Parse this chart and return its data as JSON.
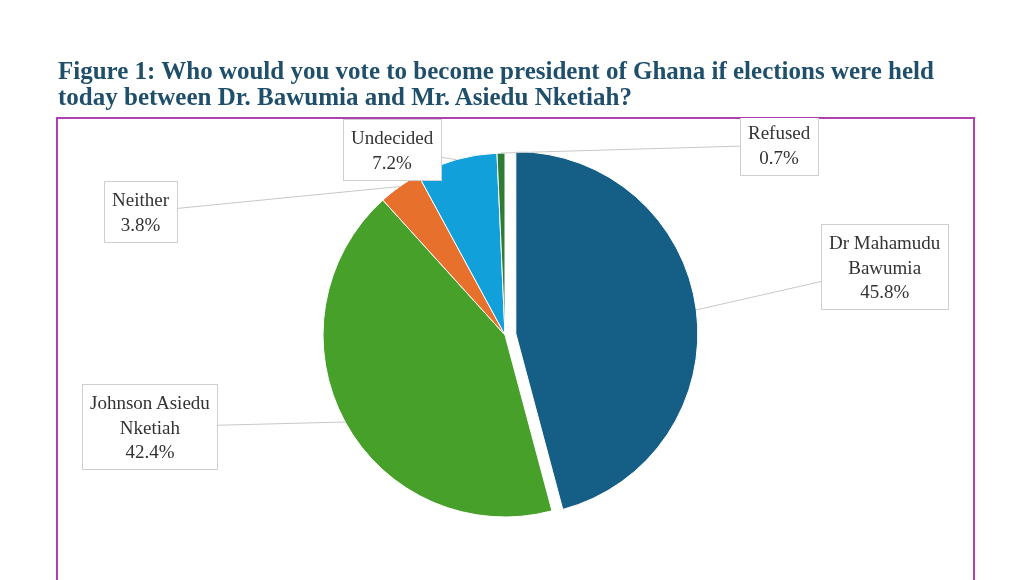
{
  "chart_data": {
    "type": "pie",
    "title": "Figure 1: Who would you vote to become president of Ghana if elections were held today between Dr. Bawumia and Mr. Asiedu Nketiah?",
    "categories": [
      "Dr Mahamudu Bawumia",
      "Johnson Asiedu Nketiah",
      "Neither",
      "Undecided",
      "Refused"
    ],
    "values": [
      45.8,
      42.4,
      3.8,
      7.2,
      0.7
    ],
    "value_labels": [
      "45.8%",
      "42.4%",
      "3.8%",
      "7.2%",
      "0.7%"
    ],
    "colors": [
      "#155f86",
      "#47a02a",
      "#e8702d",
      "#12a0da",
      "#2e7d32"
    ],
    "legend": false
  }
}
